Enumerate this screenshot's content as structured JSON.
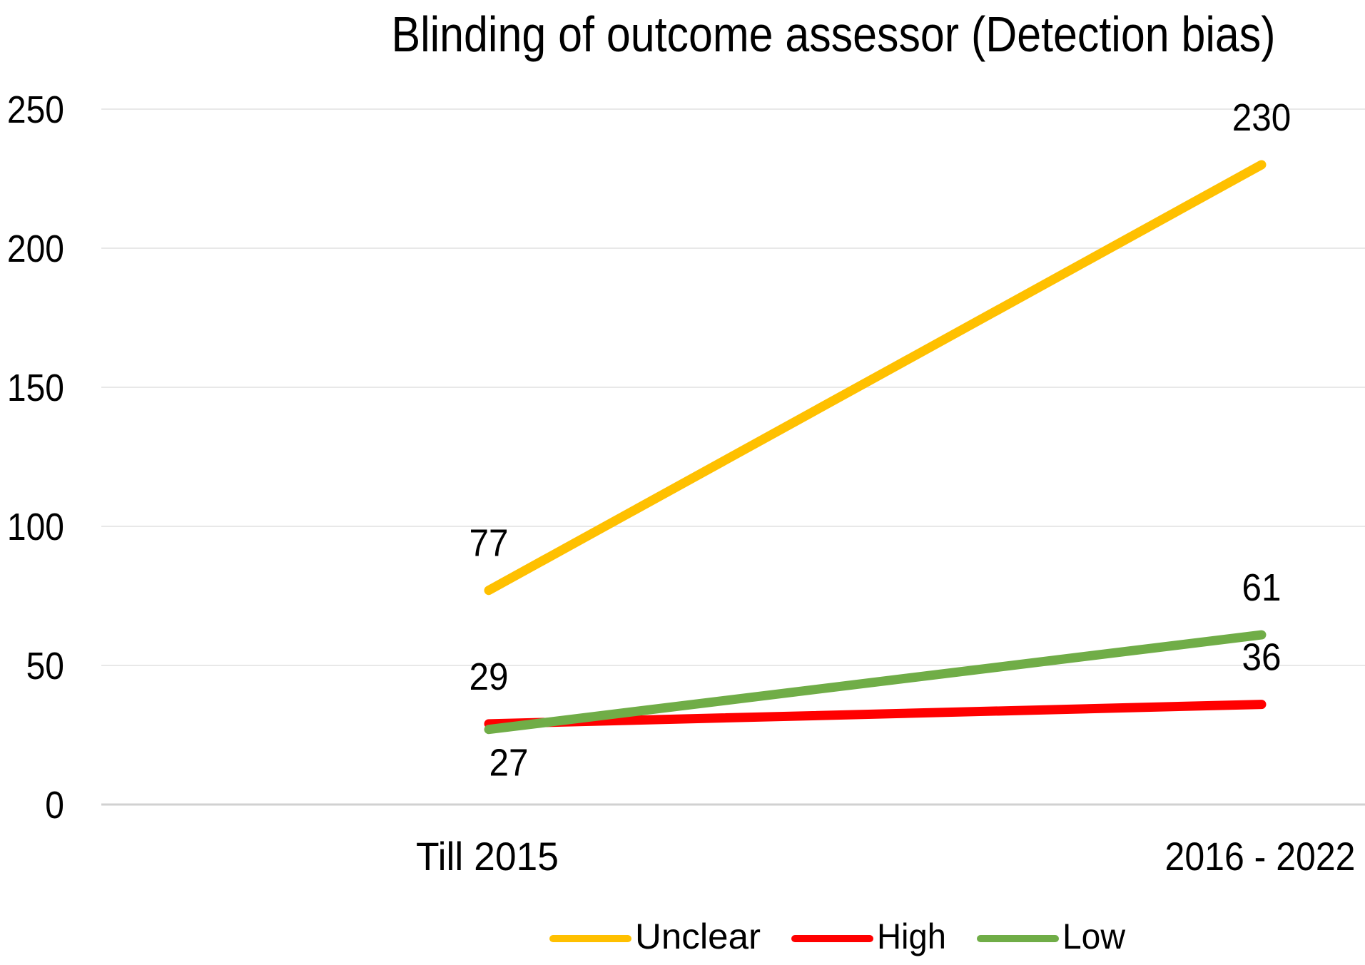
{
  "chart_data": {
    "type": "line",
    "title": "Blinding of outcome assessor (Detection bias)",
    "categories": [
      "Till 2015",
      "2016 - 2022"
    ],
    "series": [
      {
        "name": "Unclear",
        "color": "#FFC000",
        "values": [
          77,
          230
        ],
        "label_positions": [
          "above",
          "above"
        ]
      },
      {
        "name": "High",
        "color": "#FF0000",
        "values": [
          29,
          36
        ],
        "label_positions": [
          "above",
          "above"
        ]
      },
      {
        "name": "Low",
        "color": "#70AD47",
        "values": [
          27,
          61
        ],
        "label_positions": [
          "below",
          "above"
        ]
      }
    ],
    "y_ticks": [
      0,
      50,
      100,
      150,
      200,
      250
    ],
    "ylim": [
      0,
      250
    ],
    "grid": true,
    "data_labels": true,
    "legend_position": "bottom",
    "legend_entries": [
      "Unclear",
      "High",
      "Low"
    ]
  },
  "styles": {
    "background": "#FFFFFF",
    "text_color": "#000000",
    "gridline_color": "#E8E8E8",
    "axis_line_color": "#D1D1D1"
  }
}
